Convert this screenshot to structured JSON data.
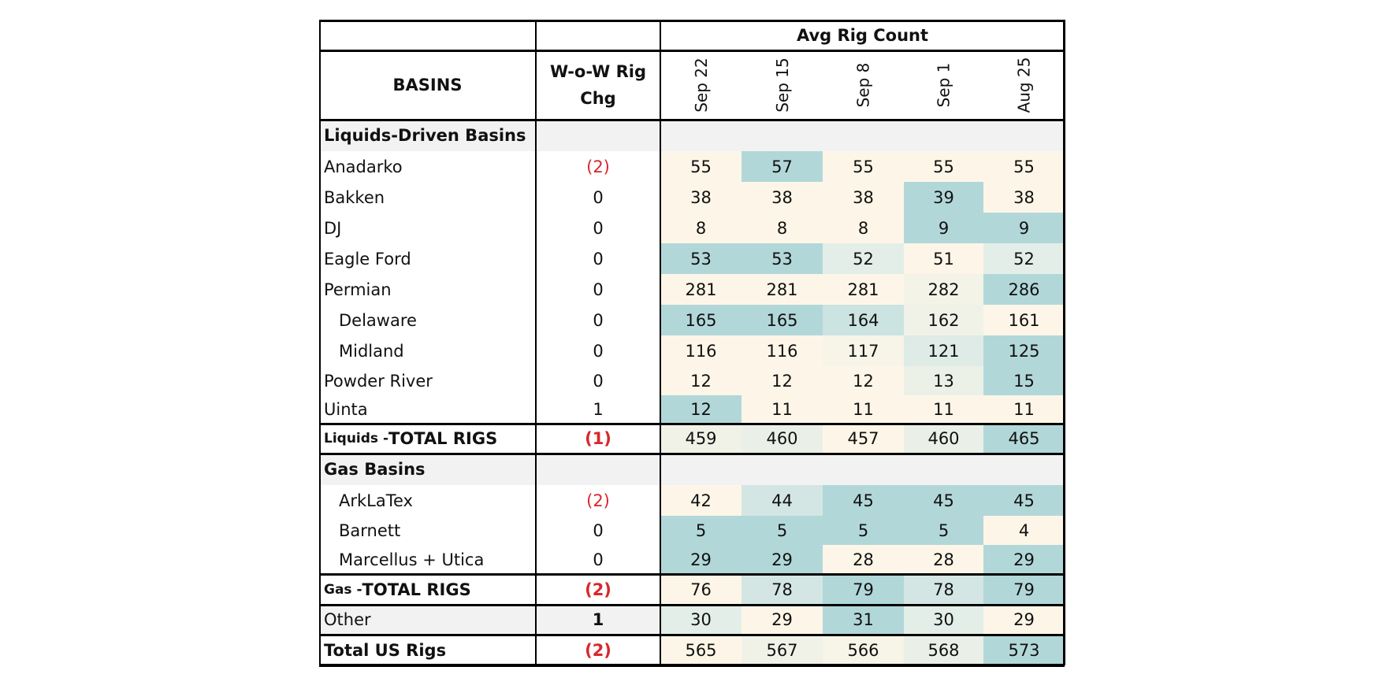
{
  "chart_data": {
    "type": "table",
    "header": {
      "group_label": "Avg Rig Count",
      "basins_label": "BASINS",
      "chg_label_line1": "W-o-W Rig",
      "chg_label_line2": "Chg",
      "dates": [
        "Sep 22",
        "Sep 15",
        "Sep 8",
        "Sep 1",
        "Aug 25"
      ]
    },
    "colors": {
      "scale_low": "#fdf6e8",
      "scale_mid": "#e3eee8",
      "scale_high": "#b2d7d9",
      "negative_change": "#d9262b",
      "section_band": "#f2f2f2"
    },
    "rows": [
      {
        "kind": "section",
        "label": "Liquids-Driven Basins"
      },
      {
        "kind": "data",
        "label": "Anadarko",
        "chg": "(2)",
        "values": [
          55,
          57,
          55,
          55,
          55
        ],
        "chg_red": true
      },
      {
        "kind": "data",
        "label": "Bakken",
        "chg": "0",
        "values": [
          38,
          38,
          38,
          39,
          38
        ]
      },
      {
        "kind": "data",
        "label": "DJ",
        "chg": "0",
        "values": [
          8,
          8,
          8,
          9,
          9
        ]
      },
      {
        "kind": "data",
        "label": "Eagle Ford",
        "chg": "0",
        "values": [
          53,
          53,
          52,
          51,
          52
        ]
      },
      {
        "kind": "data",
        "label": "Permian",
        "chg": "0",
        "values": [
          281,
          281,
          281,
          282,
          286
        ]
      },
      {
        "kind": "data",
        "label": "Delaware",
        "chg": "0",
        "values": [
          165,
          165,
          164,
          162,
          161
        ],
        "indent": true
      },
      {
        "kind": "data",
        "label": "Midland",
        "chg": "0",
        "values": [
          116,
          116,
          117,
          121,
          125
        ],
        "indent": true
      },
      {
        "kind": "data",
        "label": "Powder River",
        "chg": "0",
        "values": [
          12,
          12,
          12,
          13,
          15
        ]
      },
      {
        "kind": "data",
        "label": "Uinta",
        "chg": "1",
        "values": [
          12,
          11,
          11,
          11,
          11
        ]
      },
      {
        "kind": "total",
        "label_prefix": "Liquids - ",
        "label": "TOTAL RIGS",
        "chg": "(1)",
        "values": [
          459,
          460,
          457,
          460,
          465
        ],
        "chg_red": true,
        "chg_bold": true
      },
      {
        "kind": "section",
        "label": "Gas Basins"
      },
      {
        "kind": "data",
        "label": "ArkLaTex",
        "chg": "(2)",
        "values": [
          42,
          44,
          45,
          45,
          45
        ],
        "indent": true,
        "chg_red": true
      },
      {
        "kind": "data",
        "label": "Barnett",
        "chg": "0",
        "values": [
          5,
          5,
          5,
          5,
          4
        ],
        "indent": true
      },
      {
        "kind": "data",
        "label": "Marcellus + Utica",
        "chg": "0",
        "values": [
          29,
          29,
          28,
          28,
          29
        ],
        "indent": true
      },
      {
        "kind": "total",
        "label_prefix": "Gas - ",
        "label": "TOTAL RIGS",
        "chg": "(2)",
        "values": [
          76,
          78,
          79,
          78,
          79
        ],
        "chg_red": true,
        "chg_bold": true
      },
      {
        "kind": "total",
        "label": "Other",
        "chg": "1",
        "values": [
          30,
          29,
          31,
          30,
          29
        ],
        "chg_bold": true,
        "shaded": true,
        "plain_label": true
      },
      {
        "kind": "total",
        "label": "Total US Rigs",
        "chg": "(2)",
        "values": [
          565,
          567,
          566,
          568,
          573
        ],
        "chg_red": true,
        "chg_bold": true,
        "bold_label": true
      }
    ]
  }
}
